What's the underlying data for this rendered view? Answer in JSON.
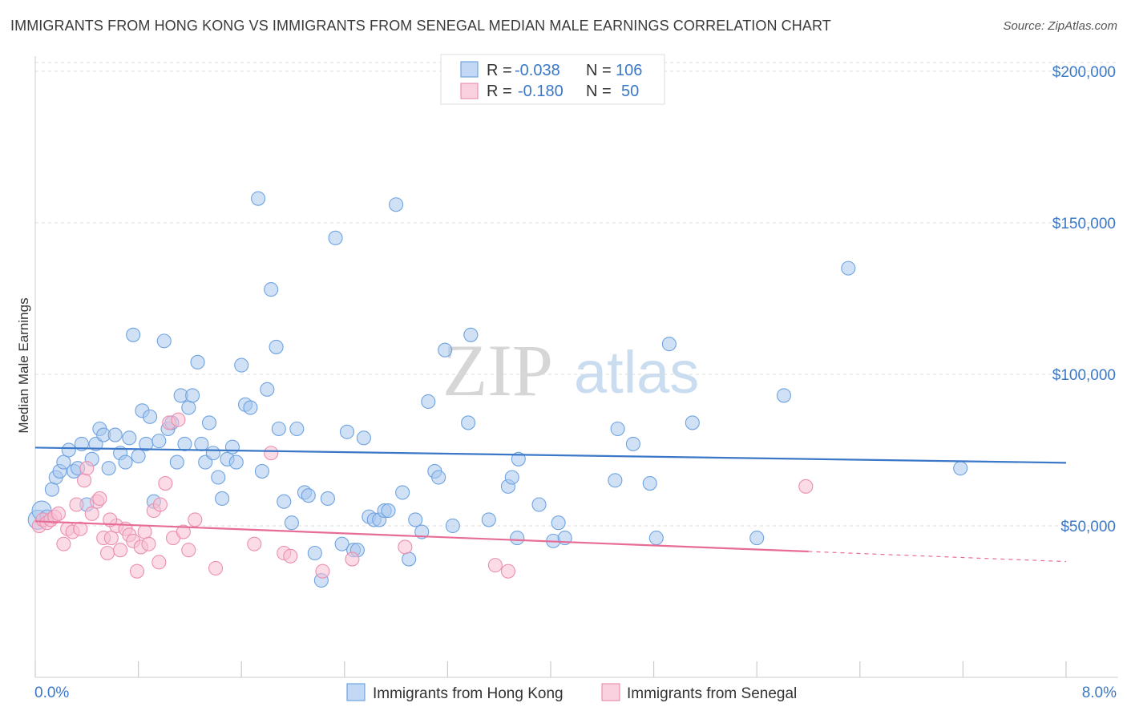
{
  "header": {
    "title": "IMMIGRANTS FROM HONG KONG VS IMMIGRANTS FROM SENEGAL MEDIAN MALE EARNINGS CORRELATION CHART",
    "source": "Source: ZipAtlas.com"
  },
  "watermark": {
    "zip": "ZIP",
    "atlas": "atlas"
  },
  "legend_box": {
    "rows": [
      {
        "r_label": "R =",
        "r_value": "-0.038",
        "n_label": "N =",
        "n_value": "106",
        "color": "#6fa3e0"
      },
      {
        "r_label": "R =",
        "r_value": "-0.180",
        "n_label": "N =",
        "n_value": "50",
        "color": "#f08fb0"
      }
    ]
  },
  "colors": {
    "hong_kong_fill": "#a9c8ee",
    "hong_kong_stroke": "#6fa3e0",
    "hong_kong_line": "#3b78c7",
    "senegal_fill": "#f7bfd2",
    "senegal_stroke": "#ec8fb1",
    "senegal_line": "#e76d97",
    "grid": "#dcdcdc",
    "tick_label": "#3b78c7"
  },
  "chart_data": {
    "type": "scatter",
    "title": "IMMIGRANTS FROM HONG KONG VS IMMIGRANTS FROM SENEGAL MEDIAN MALE EARNINGS CORRELATION CHART",
    "xlabel": "",
    "ylabel": "Median Male Earnings",
    "xlim": [
      0,
      8
    ],
    "ylim": [
      0,
      205000
    ],
    "x_tick_labels": [
      "0.0%",
      "8.0%"
    ],
    "y_ticks": [
      50000,
      100000,
      150000,
      200000
    ],
    "y_tick_labels": [
      "$50,000",
      "$100,000",
      "$150,000",
      "$200,000"
    ],
    "grid": true,
    "legend_position": "top-center",
    "series": [
      {
        "name": "Immigrants from Hong Kong",
        "r": -0.038,
        "n": 106,
        "trend": {
          "x": [
            0.0,
            8.0
          ],
          "y": [
            75800,
            70800
          ],
          "dashed_from": null
        },
        "points": [
          [
            0.02,
            52000
          ],
          [
            0.05,
            55000
          ],
          [
            0.09,
            53000
          ],
          [
            0.13,
            62000
          ],
          [
            0.16,
            66000
          ],
          [
            0.19,
            68000
          ],
          [
            0.22,
            71000
          ],
          [
            0.26,
            75000
          ],
          [
            0.3,
            68000
          ],
          [
            0.33,
            69000
          ],
          [
            0.36,
            77000
          ],
          [
            0.4,
            57000
          ],
          [
            0.44,
            72000
          ],
          [
            0.47,
            77000
          ],
          [
            0.5,
            82000
          ],
          [
            0.53,
            80000
          ],
          [
            0.57,
            69000
          ],
          [
            0.62,
            80000
          ],
          [
            0.66,
            74000
          ],
          [
            0.7,
            71000
          ],
          [
            0.73,
            79000
          ],
          [
            0.76,
            113000
          ],
          [
            0.8,
            73000
          ],
          [
            0.83,
            88000
          ],
          [
            0.86,
            77000
          ],
          [
            0.89,
            86000
          ],
          [
            0.92,
            58000
          ],
          [
            0.96,
            78000
          ],
          [
            1.0,
            111000
          ],
          [
            1.03,
            82000
          ],
          [
            1.06,
            84000
          ],
          [
            1.1,
            71000
          ],
          [
            1.13,
            93000
          ],
          [
            1.16,
            77000
          ],
          [
            1.19,
            89000
          ],
          [
            1.22,
            93000
          ],
          [
            1.26,
            104000
          ],
          [
            1.29,
            77000
          ],
          [
            1.32,
            71000
          ],
          [
            1.35,
            84000
          ],
          [
            1.38,
            74000
          ],
          [
            1.42,
            66000
          ],
          [
            1.45,
            59000
          ],
          [
            1.49,
            72000
          ],
          [
            1.53,
            76000
          ],
          [
            1.56,
            71000
          ],
          [
            1.6,
            103000
          ],
          [
            1.63,
            90000
          ],
          [
            1.67,
            89000
          ],
          [
            1.73,
            158000
          ],
          [
            1.76,
            68000
          ],
          [
            1.8,
            95000
          ],
          [
            1.83,
            128000
          ],
          [
            1.87,
            109000
          ],
          [
            1.89,
            82000
          ],
          [
            1.93,
            58000
          ],
          [
            1.99,
            51000
          ],
          [
            2.03,
            82000
          ],
          [
            2.09,
            61000
          ],
          [
            2.12,
            60000
          ],
          [
            2.17,
            41000
          ],
          [
            2.22,
            32000
          ],
          [
            2.27,
            59000
          ],
          [
            2.33,
            145000
          ],
          [
            2.38,
            44000
          ],
          [
            2.42,
            81000
          ],
          [
            2.47,
            42000
          ],
          [
            2.5,
            42000
          ],
          [
            2.55,
            79000
          ],
          [
            2.59,
            53000
          ],
          [
            2.63,
            52000
          ],
          [
            2.67,
            52000
          ],
          [
            2.71,
            55000
          ],
          [
            2.74,
            55000
          ],
          [
            2.8,
            156000
          ],
          [
            2.85,
            61000
          ],
          [
            2.9,
            39000
          ],
          [
            2.95,
            52000
          ],
          [
            3.0,
            48000
          ],
          [
            3.05,
            91000
          ],
          [
            3.1,
            68000
          ],
          [
            3.13,
            66000
          ],
          [
            3.18,
            108000
          ],
          [
            3.24,
            50000
          ],
          [
            3.36,
            84000
          ],
          [
            3.38,
            113000
          ],
          [
            3.52,
            52000
          ],
          [
            3.67,
            63000
          ],
          [
            3.7,
            66000
          ],
          [
            3.74,
            46000
          ],
          [
            3.75,
            72000
          ],
          [
            3.91,
            57000
          ],
          [
            4.02,
            45000
          ],
          [
            4.06,
            51000
          ],
          [
            4.11,
            46000
          ],
          [
            4.5,
            65000
          ],
          [
            4.52,
            82000
          ],
          [
            4.64,
            77000
          ],
          [
            4.77,
            64000
          ],
          [
            4.82,
            46000
          ],
          [
            4.92,
            110000
          ],
          [
            5.1,
            84000
          ],
          [
            5.6,
            46000
          ],
          [
            5.81,
            93000
          ],
          [
            6.31,
            135000
          ],
          [
            7.18,
            69000
          ]
        ]
      },
      {
        "name": "Immigrants from Senegal",
        "r": -0.18,
        "n": 50,
        "trend": {
          "x": [
            0.0,
            8.0
          ],
          "y": [
            51500,
            38200
          ],
          "dashed_from": 6.0
        },
        "points": [
          [
            0.03,
            50000
          ],
          [
            0.06,
            52000
          ],
          [
            0.09,
            51000
          ],
          [
            0.12,
            52000
          ],
          [
            0.15,
            53000
          ],
          [
            0.18,
            54000
          ],
          [
            0.22,
            44000
          ],
          [
            0.25,
            49000
          ],
          [
            0.29,
            48000
          ],
          [
            0.32,
            57000
          ],
          [
            0.35,
            49000
          ],
          [
            0.38,
            65000
          ],
          [
            0.4,
            69000
          ],
          [
            0.44,
            54000
          ],
          [
            0.48,
            58000
          ],
          [
            0.5,
            59000
          ],
          [
            0.53,
            46000
          ],
          [
            0.56,
            41000
          ],
          [
            0.59,
            46000
          ],
          [
            0.63,
            50000
          ],
          [
            0.66,
            42000
          ],
          [
            0.7,
            49000
          ],
          [
            0.73,
            47000
          ],
          [
            0.76,
            45000
          ],
          [
            0.79,
            35000
          ],
          [
            0.82,
            43000
          ],
          [
            0.85,
            48000
          ],
          [
            0.88,
            44000
          ],
          [
            0.92,
            55000
          ],
          [
            0.96,
            38000
          ],
          [
            1.01,
            64000
          ],
          [
            1.04,
            84000
          ],
          [
            1.07,
            46000
          ],
          [
            1.11,
            85000
          ],
          [
            1.15,
            48000
          ],
          [
            1.19,
            42000
          ],
          [
            1.24,
            52000
          ],
          [
            1.4,
            36000
          ],
          [
            1.7,
            44000
          ],
          [
            1.83,
            74000
          ],
          [
            1.93,
            41000
          ],
          [
            1.98,
            40000
          ],
          [
            2.23,
            35000
          ],
          [
            2.46,
            39000
          ],
          [
            2.87,
            43000
          ],
          [
            3.57,
            37000
          ],
          [
            3.67,
            35000
          ],
          [
            5.98,
            63000
          ],
          [
            0.97,
            57000
          ],
          [
            0.58,
            52000
          ]
        ]
      }
    ]
  },
  "bottom_legend": {
    "items": [
      {
        "label": "Immigrants from Hong Kong"
      },
      {
        "label": "Immigrants from Senegal"
      }
    ]
  }
}
